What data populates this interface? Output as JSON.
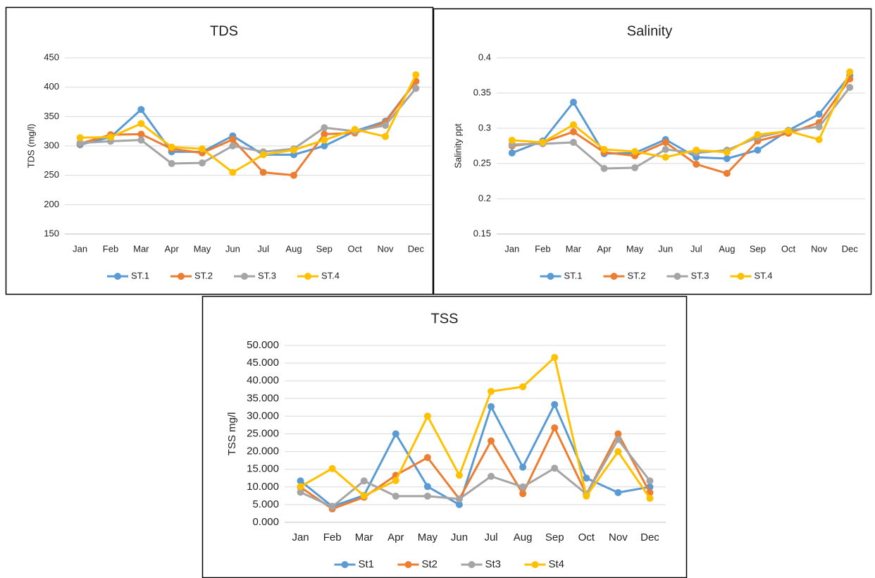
{
  "chart_data": [
    {
      "type": "line",
      "title": "TDS",
      "y_label": "TDS (mg/l)",
      "categories": [
        "Jan",
        "Feb",
        "Mar",
        "Apr",
        "May",
        "Jun",
        "Jul",
        "Aug",
        "Sep",
        "Oct",
        "Nov",
        "Dec"
      ],
      "series": [
        {
          "name": "ST.1",
          "color": "#5b9bd5",
          "values": [
            302,
            315,
            362,
            290,
            290,
            317,
            285,
            285,
            300,
            325,
            342,
            410
          ]
        },
        {
          "name": "ST.2",
          "color": "#ed7d31",
          "values": [
            304,
            319,
            320,
            295,
            288,
            311,
            255,
            250,
            320,
            322,
            340,
            410
          ]
        },
        {
          "name": "ST.3",
          "color": "#a5a5a5",
          "values": [
            305,
            308,
            310,
            270,
            271,
            300,
            290,
            295,
            331,
            325,
            335,
            398
          ]
        },
        {
          "name": "ST.4",
          "color": "#ffc000",
          "values": [
            314,
            315,
            338,
            298,
            295,
            255,
            285,
            293,
            310,
            328,
            316,
            421
          ]
        }
      ],
      "ylim": [
        150,
        450
      ],
      "yticks": [
        150,
        200,
        250,
        300,
        350,
        400,
        450
      ],
      "grid": true,
      "legend": "bottom"
    },
    {
      "type": "line",
      "title": "Salinity",
      "y_label": "Salinity ppt",
      "categories": [
        "Jan",
        "Feb",
        "Mar",
        "Apr",
        "May",
        "Jun",
        "Jul",
        "Aug",
        "Sep",
        "Oct",
        "Nov",
        "Dec"
      ],
      "series": [
        {
          "name": "ST.1",
          "color": "#5b9bd5",
          "values": [
            0.265,
            0.282,
            0.337,
            0.264,
            0.265,
            0.284,
            0.259,
            0.257,
            0.269,
            0.297,
            0.32,
            0.375
          ]
        },
        {
          "name": "ST.2",
          "color": "#ed7d31",
          "values": [
            0.275,
            0.28,
            0.295,
            0.266,
            0.261,
            0.28,
            0.249,
            0.236,
            0.282,
            0.293,
            0.308,
            0.37
          ]
        },
        {
          "name": "ST.3",
          "color": "#a5a5a5",
          "values": [
            0.277,
            0.278,
            0.28,
            0.243,
            0.244,
            0.27,
            0.265,
            0.269,
            0.287,
            0.297,
            0.302,
            0.358
          ]
        },
        {
          "name": "ST.4",
          "color": "#ffc000",
          "values": [
            0.283,
            0.28,
            0.305,
            0.27,
            0.267,
            0.259,
            0.269,
            0.266,
            0.291,
            0.296,
            0.284,
            0.38
          ]
        }
      ],
      "ylim": [
        0.15,
        0.4
      ],
      "yticks": [
        0.15,
        0.2,
        0.25,
        0.3,
        0.35,
        0.4
      ],
      "grid": true,
      "legend": "bottom"
    },
    {
      "type": "line",
      "title": "TSS",
      "y_label": "TSS mg/l",
      "categories": [
        "Jan",
        "Feb",
        "Mar",
        "Apr",
        "May",
        "Jun",
        "Jul",
        "Aug",
        "Sep",
        "Oct",
        "Nov",
        "Dec"
      ],
      "series": [
        {
          "name": "St1",
          "color": "#5b9bd5",
          "values": [
            11.7,
            4.5,
            7.6,
            25,
            10.1,
            5,
            32.7,
            15.6,
            33.3,
            12.5,
            8.4,
            10
          ]
        },
        {
          "name": "St2",
          "color": "#ed7d31",
          "values": [
            9.9,
            3.8,
            7.1,
            13.3,
            18.3,
            6.6,
            23,
            8.1,
            26.7,
            7.9,
            25,
            8.4
          ]
        },
        {
          "name": "St3",
          "color": "#a5a5a5",
          "values": [
            8.5,
            4.4,
            11.7,
            7.4,
            7.4,
            6.6,
            13,
            10,
            15.3,
            8,
            23.4,
            11.7
          ]
        },
        {
          "name": "St4",
          "color": "#ffc000",
          "values": [
            10.1,
            15.2,
            7.5,
            11.8,
            30,
            13.3,
            37,
            38.3,
            46.6,
            7.4,
            20,
            6.8
          ]
        }
      ],
      "ylim": [
        0,
        50
      ],
      "yticks": [
        {
          "value": 0,
          "label": "0.000"
        },
        {
          "value": 5,
          "label": "5.000"
        },
        {
          "value": 10,
          "label": "10.000"
        },
        {
          "value": 15,
          "label": "15.000"
        },
        {
          "value": 20,
          "label": "20.000"
        },
        {
          "value": 25,
          "label": "25.000"
        },
        {
          "value": 30,
          "label": "30.000"
        },
        {
          "value": 35,
          "label": "35.000"
        },
        {
          "value": 40,
          "label": "40.000"
        },
        {
          "value": 45,
          "label": "45.000"
        },
        {
          "value": 50,
          "label": "50.000"
        }
      ],
      "grid": true,
      "legend": "bottom"
    }
  ]
}
